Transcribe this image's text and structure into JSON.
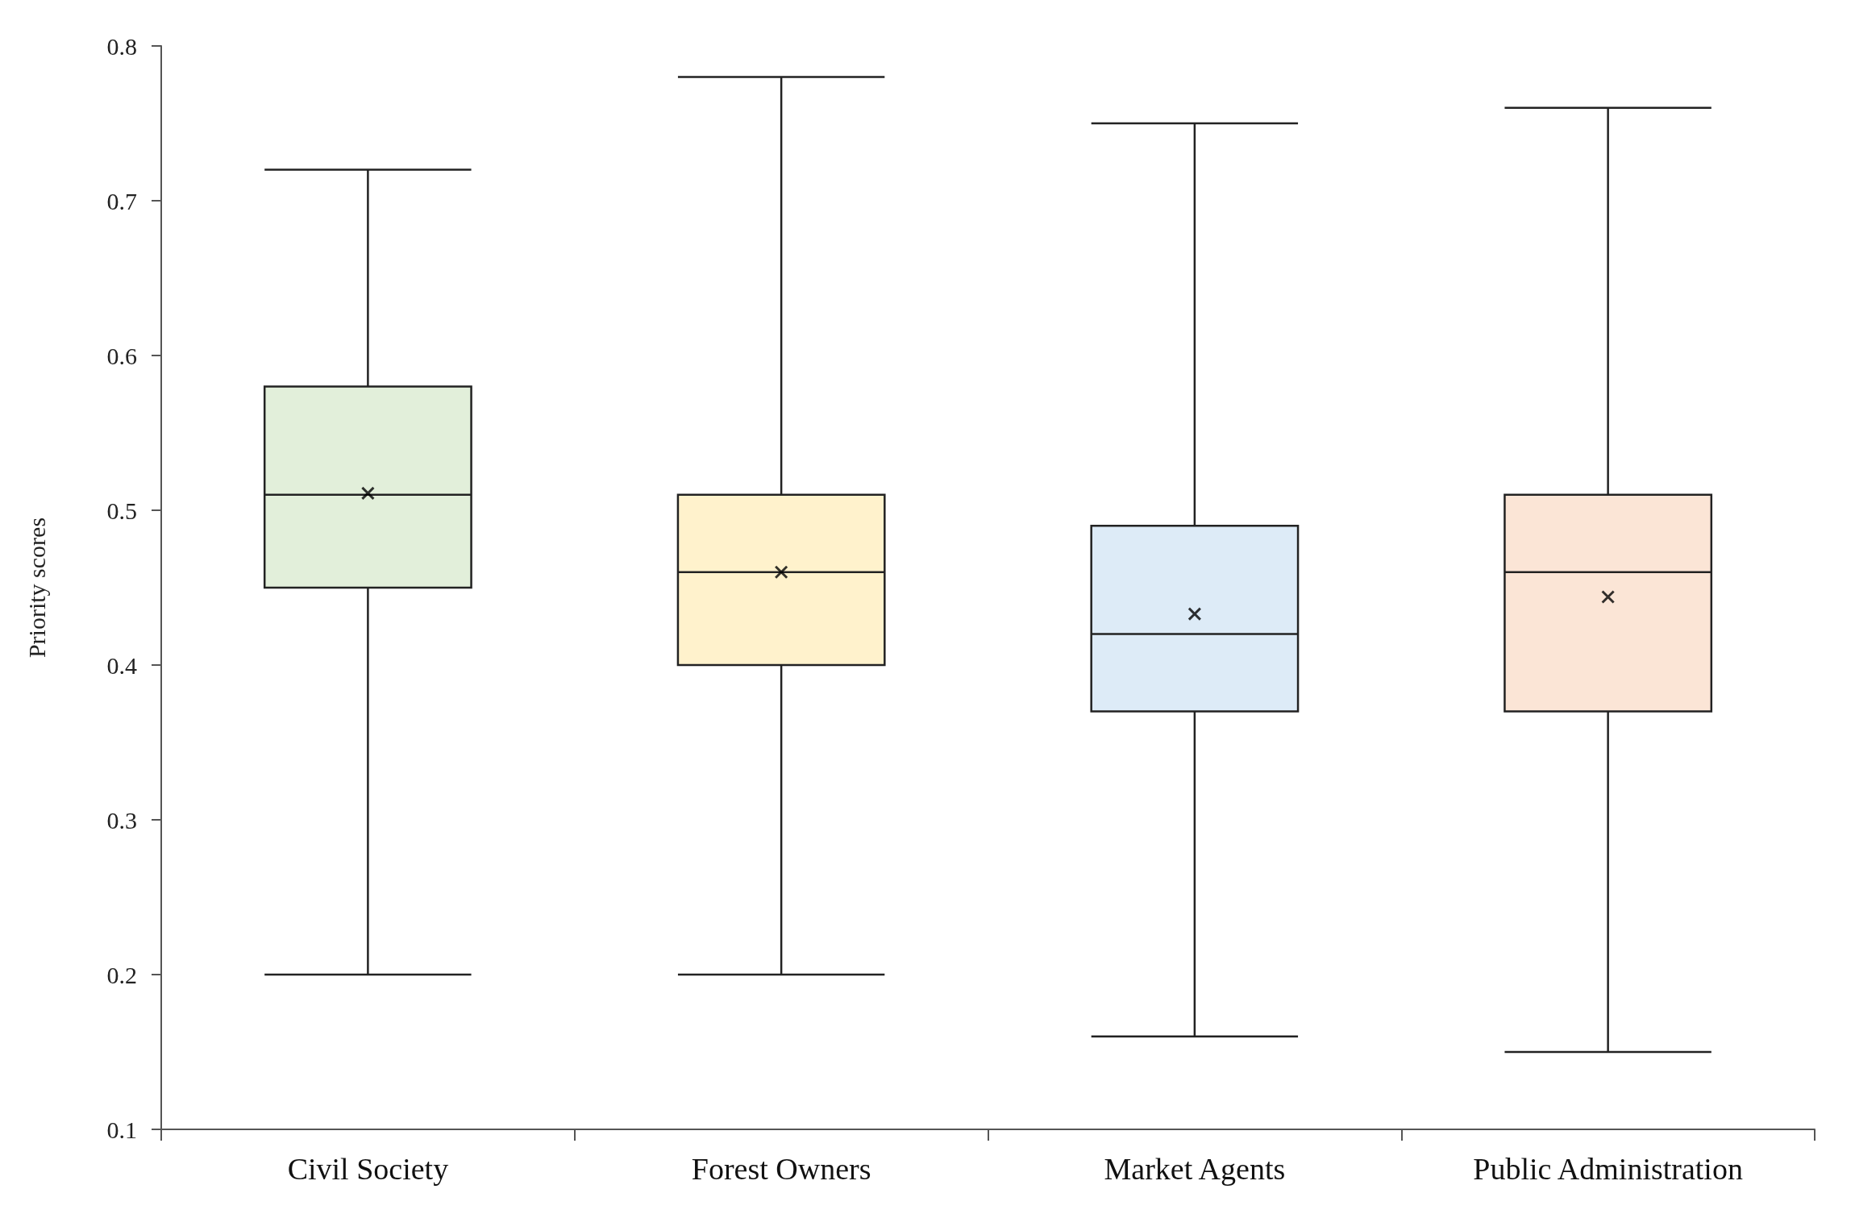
{
  "chart_data": {
    "type": "box",
    "ylabel": "Priority scores",
    "categories": [
      "Civil Society",
      "Forest Owners",
      "Market Agents",
      "Public Administration"
    ],
    "boxes": [
      {
        "low": 0.2,
        "q1": 0.45,
        "median": 0.51,
        "q3": 0.58,
        "high": 0.72,
        "mean": 0.511
      },
      {
        "low": 0.2,
        "q1": 0.4,
        "median": 0.46,
        "q3": 0.51,
        "high": 0.78,
        "mean": 0.46
      },
      {
        "low": 0.16,
        "q1": 0.37,
        "median": 0.42,
        "q3": 0.49,
        "high": 0.75,
        "mean": 0.433
      },
      {
        "low": 0.15,
        "q1": 0.37,
        "median": 0.46,
        "q3": 0.51,
        "high": 0.76,
        "mean": 0.444
      }
    ],
    "colors": [
      "#e2efda",
      "#fff2cc",
      "#ddebf7",
      "#fbe5d6"
    ],
    "marker": "cross",
    "ylim": [
      0.1,
      0.8
    ],
    "yticks": [
      0.1,
      0.2,
      0.3,
      0.4,
      0.5,
      0.6,
      0.7,
      0.8
    ],
    "grid": false
  }
}
